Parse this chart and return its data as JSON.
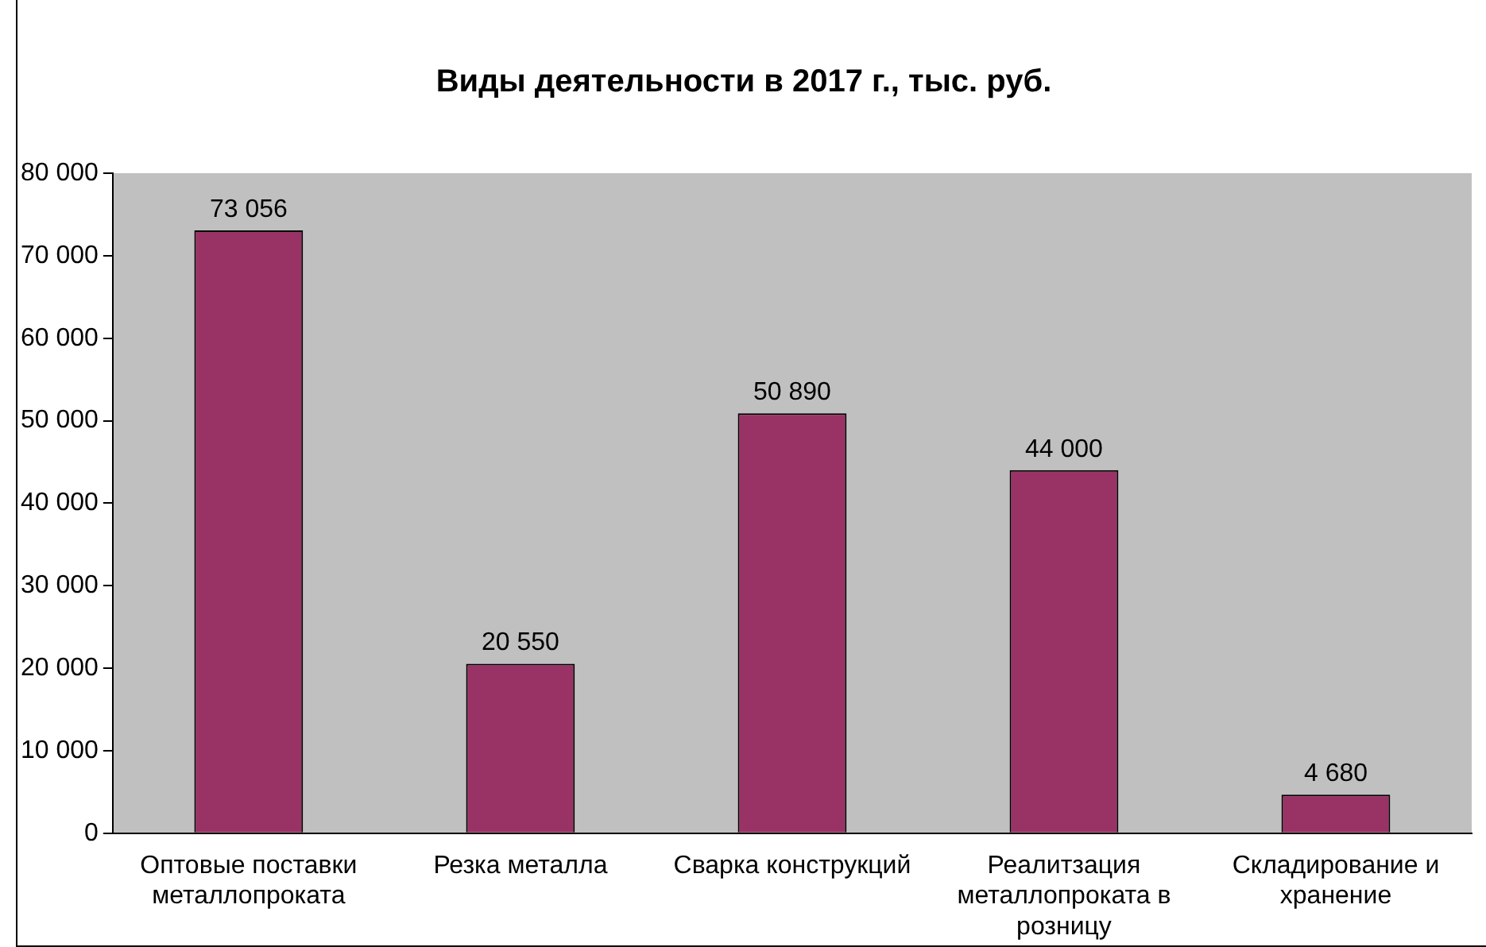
{
  "chart_data": {
    "type": "bar",
    "title": "Виды деятельности в 2017 г., тыс. руб.",
    "categories": [
      "Оптовые поставки металлопроката",
      "Резка металла",
      "Сварка конструкций",
      "Реалитзация металлопроката в розницу",
      "Складирование и хранение"
    ],
    "values": [
      73056,
      20550,
      50890,
      44000,
      4680
    ],
    "color": "#993366",
    "ylim": [
      0,
      80000
    ],
    "yticks": [
      0,
      10000,
      20000,
      30000,
      40000,
      50000,
      60000,
      70000,
      80000
    ],
    "grid": false,
    "legend": false,
    "data_labels": true
  }
}
